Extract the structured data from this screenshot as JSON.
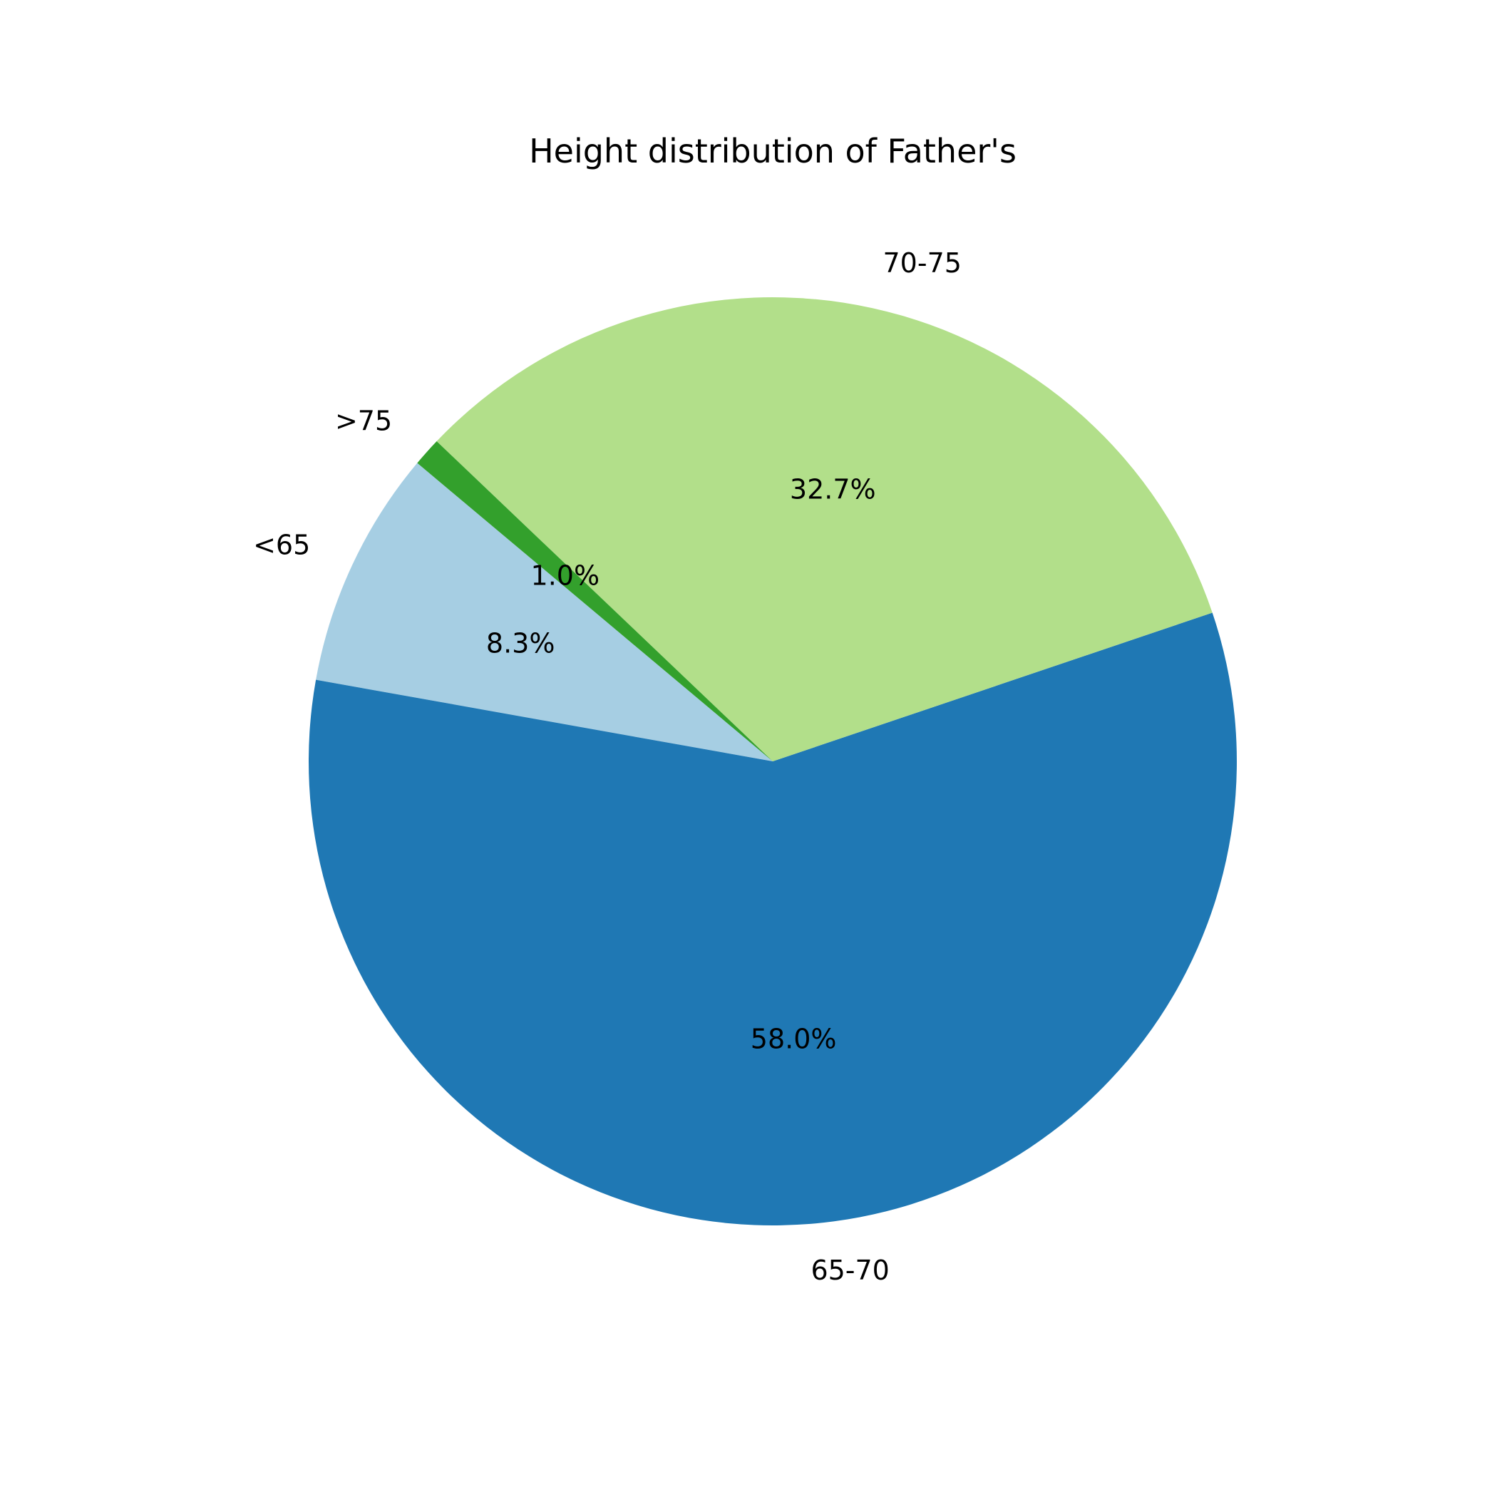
{
  "chart_data": {
    "type": "pie",
    "title": "Height distribution of Father's",
    "slices": [
      {
        "label": "<65",
        "value": 8.3,
        "pct_label": "8.3%",
        "color": "#a6cee3"
      },
      {
        "label": "65-70",
        "value": 58.0,
        "pct_label": "58.0%",
        "color": "#1f78b4"
      },
      {
        "label": "70-75",
        "value": 32.7,
        "pct_label": "32.7%",
        "color": "#b2df8a"
      },
      {
        "label": ">75",
        "value": 1.0,
        "pct_label": "1.0%",
        "color": "#33a02c"
      }
    ],
    "start_angle_deg": 140,
    "direction": "counterclockwise",
    "legend": "none"
  }
}
